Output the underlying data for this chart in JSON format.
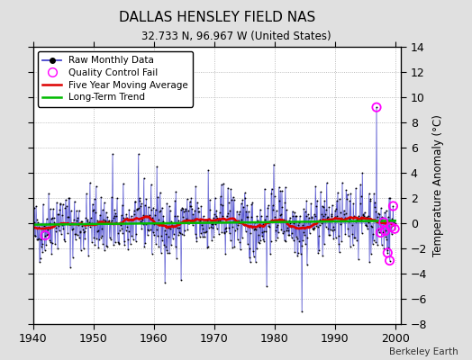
{
  "title": "DALLAS HENSLEY FIELD NAS",
  "subtitle": "32.733 N, 96.967 W (United States)",
  "ylabel": "Temperature Anomaly (°C)",
  "attribution": "Berkeley Earth",
  "xlim": [
    1940,
    2001
  ],
  "ylim": [
    -8,
    14
  ],
  "yticks": [
    -8,
    -6,
    -4,
    -2,
    0,
    2,
    4,
    6,
    8,
    10,
    12,
    14
  ],
  "xticks": [
    1940,
    1950,
    1960,
    1970,
    1980,
    1990,
    2000
  ],
  "fig_bg_color": "#e0e0e0",
  "plot_bg_color": "#ffffff",
  "raw_line_color": "#4444cc",
  "raw_marker_color": "#000000",
  "qc_fail_color": "#ff00ff",
  "moving_avg_color": "#dd0000",
  "trend_color": "#00bb00",
  "seed": 42
}
